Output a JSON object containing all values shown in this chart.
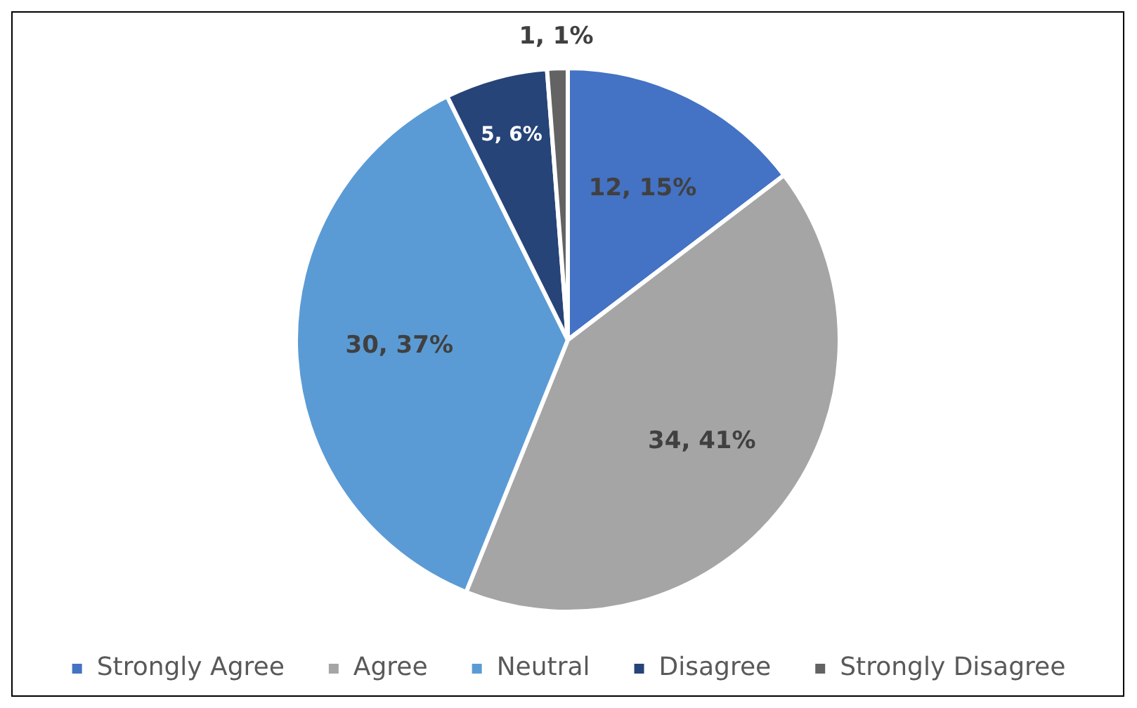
{
  "chart_data": {
    "type": "pie",
    "categories": [
      "Strongly Agree",
      "Agree",
      "Neutral",
      "Disagree",
      "Strongly Disagree"
    ],
    "values": [
      12,
      34,
      30,
      5,
      1
    ],
    "colors": [
      "#4472c4",
      "#a5a5a5",
      "#5b9bd5",
      "#264478",
      "#636363"
    ],
    "value_labels": [
      "12, 15%",
      "34, 41%",
      "30, 37%",
      "5, 6%",
      "1, 1%"
    ],
    "legend": "bottom"
  }
}
